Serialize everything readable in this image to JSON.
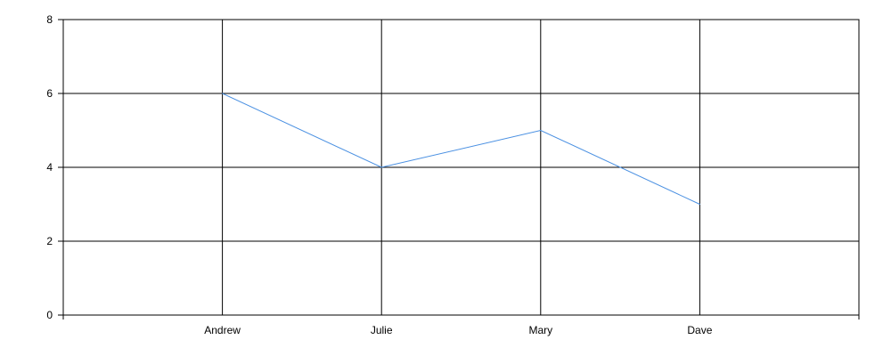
{
  "chart_data": {
    "type": "line",
    "categories": [
      "Andrew",
      "Julie",
      "Mary",
      "Dave"
    ],
    "series": [
      {
        "values": [
          6,
          4,
          5,
          3
        ],
        "color": "#4a90e2"
      }
    ],
    "ylim": [
      0,
      8
    ],
    "yticks": [
      0,
      2,
      4,
      6,
      8
    ],
    "grid": true,
    "legend": "none",
    "title": "",
    "xlabel": "",
    "ylabel": ""
  }
}
